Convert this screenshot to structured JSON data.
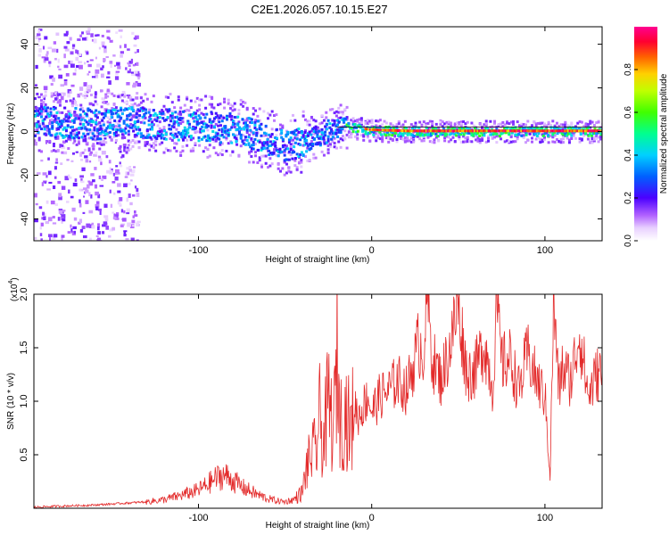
{
  "title": "C2E1.2026.057.10.15.E27",
  "chart_data": [
    {
      "type": "heatmap",
      "xlabel": "Height of straight line (km)",
      "ylabel": "Frequency (Hz)",
      "xlim": [
        -195,
        133
      ],
      "ylim": [
        -50,
        48
      ],
      "xticks": [
        -100,
        0,
        100
      ],
      "xtick_labels": [
        "-100",
        "0",
        "100"
      ],
      "yticks": [
        -40,
        -20,
        0,
        20,
        40
      ],
      "ytick_labels": [
        "-40",
        "-20",
        "0",
        "20",
        "40"
      ],
      "ridge": {
        "x": [
          -185,
          -160,
          -140,
          -120,
          -100,
          -80,
          -60,
          -50,
          -40,
          -30,
          -20,
          -10,
          0,
          20,
          40,
          60,
          80,
          100,
          120,
          133
        ],
        "freq": [
          5,
          4,
          5,
          4,
          3,
          2,
          -3,
          -6,
          -4,
          -1,
          3,
          2,
          1,
          0.5,
          0.5,
          0.5,
          0.5,
          0.5,
          0.5,
          0.5
        ]
      },
      "colorbar": {
        "label": "Normalized spectral amplitude",
        "range": [
          0,
          1
        ],
        "ticks": [
          0.0,
          0.2,
          0.4,
          0.6,
          0.8
        ],
        "tick_labels": [
          "0.0",
          "0.2",
          "0.4",
          "0.6",
          "0.8"
        ]
      }
    },
    {
      "type": "line",
      "xlabel": "Height of straight line (km)",
      "ylabel": "SNR (10 * v/v)",
      "scale_label": "(x10",
      "scale_exp": "4",
      "scale_close": ")",
      "xlim": [
        -195,
        133
      ],
      "ylim": [
        0,
        2.0
      ],
      "xticks": [
        -100,
        0,
        100
      ],
      "xtick_labels": [
        "-100",
        "0",
        "100"
      ],
      "yticks": [
        0.5,
        1.0,
        1.5,
        2.0
      ],
      "ytick_labels": [
        "0.5",
        "1.0",
        "1.5",
        "2.0"
      ],
      "color": "#e32a2a",
      "series": [
        {
          "name": "SNR",
          "x": [
            -195,
            -180,
            -160,
            -140,
            -130,
            -120,
            -110,
            -100,
            -95,
            -90,
            -85,
            -80,
            -75,
            -70,
            -65,
            -60,
            -55,
            -50,
            -45,
            -40,
            -38,
            -35,
            -32,
            -30,
            -28,
            -25,
            -22,
            -20,
            -18,
            -15,
            -12,
            -10,
            -8,
            -5,
            -2,
            0,
            5,
            10,
            15,
            20,
            25,
            27,
            30,
            32,
            35,
            40,
            45,
            50,
            55,
            60,
            65,
            70,
            72,
            75,
            80,
            85,
            90,
            95,
            100,
            103,
            105,
            108,
            110,
            115,
            120,
            125,
            130,
            133
          ],
          "values": [
            0.01,
            0.02,
            0.03,
            0.05,
            0.06,
            0.08,
            0.12,
            0.17,
            0.22,
            0.28,
            0.31,
            0.26,
            0.2,
            0.16,
            0.12,
            0.09,
            0.07,
            0.06,
            0.08,
            0.15,
            0.35,
            0.5,
            0.55,
            0.85,
            0.6,
            1.0,
            0.7,
            1.45,
            0.8,
            0.9,
            0.7,
            1.0,
            0.85,
            0.95,
            1.05,
            0.9,
            1.05,
            1.1,
            1.2,
            1.1,
            1.4,
            1.55,
            1.45,
            2.0,
            1.4,
            1.2,
            1.5,
            1.9,
            1.25,
            1.3,
            1.55,
            1.1,
            1.95,
            1.35,
            1.4,
            1.1,
            1.45,
            1.2,
            1.05,
            0.3,
            1.95,
            1.1,
            1.3,
            1.2,
            1.65,
            1.05,
            1.25,
            1.3
          ]
        }
      ]
    }
  ]
}
